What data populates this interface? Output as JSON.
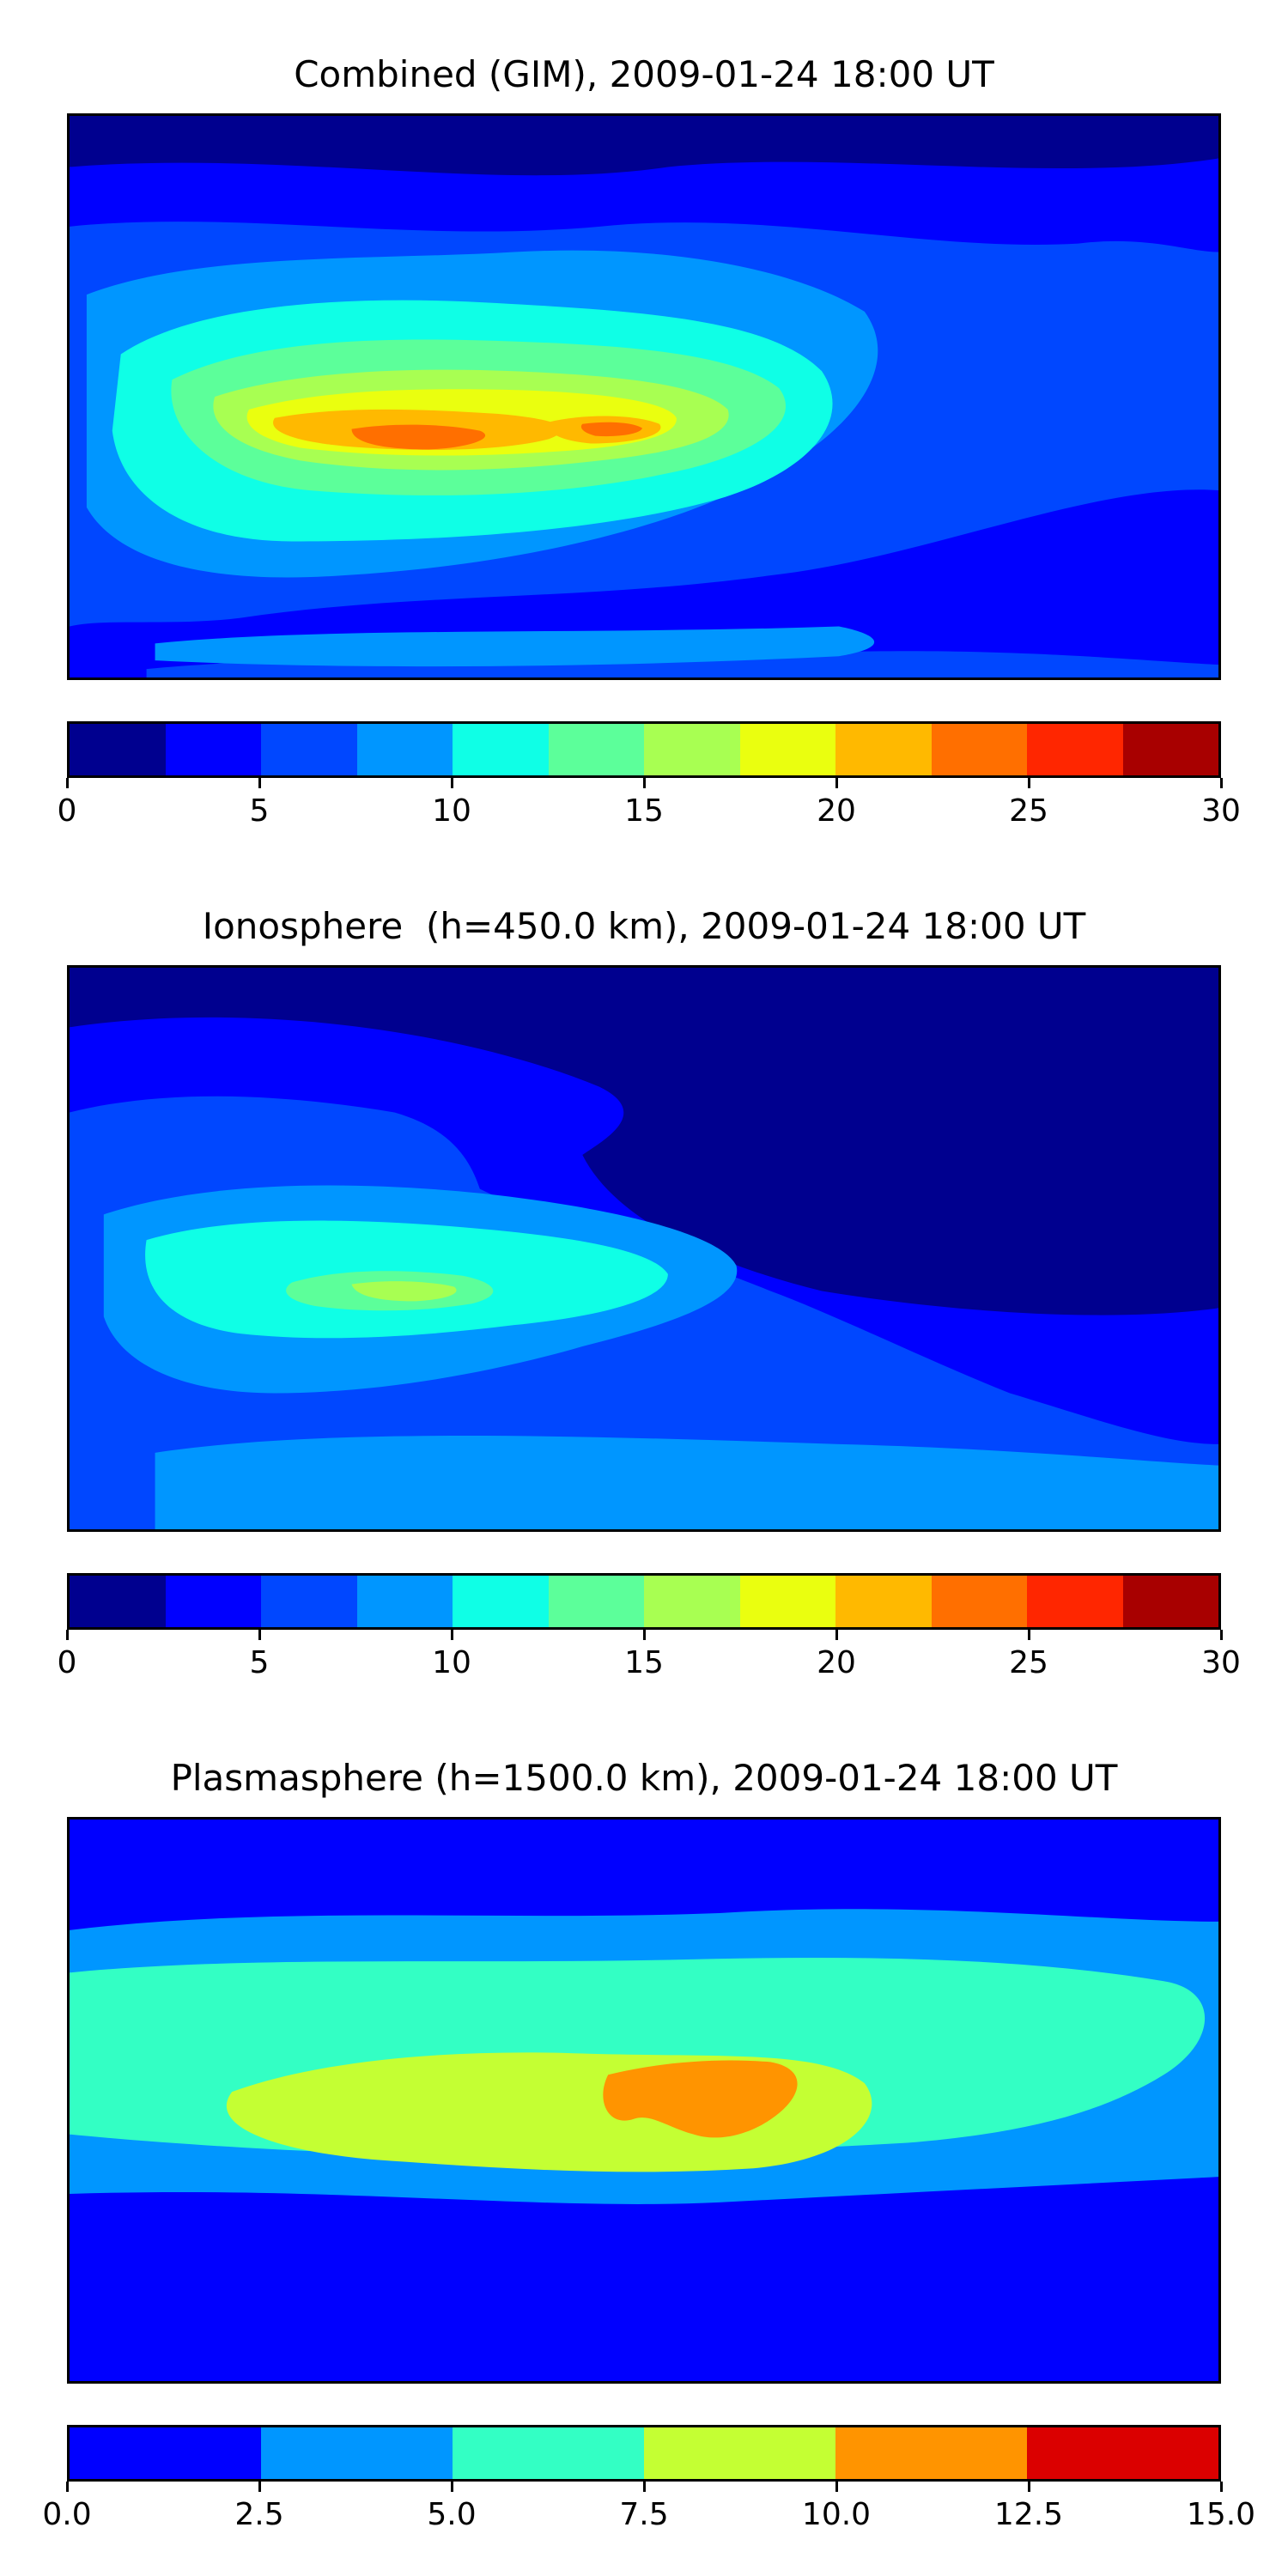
{
  "panels": [
    {
      "title": "Combined (GIM), 2009-01-24 18:00 UT",
      "colorbar": {
        "min": 0,
        "max": 30,
        "colors": [
          "#00008f",
          "#0000ff",
          "#0047ff",
          "#0096ff",
          "#0fffe6",
          "#5cff9a",
          "#a8ff52",
          "#eaff0f",
          "#ffb900",
          "#ff6f00",
          "#ff2600",
          "#a80000"
        ],
        "ticks": [
          "0",
          "5",
          "10",
          "15",
          "20",
          "25",
          "30"
        ]
      },
      "bands": [
        {
          "level": "0-2.5",
          "color": "#00008f"
        },
        {
          "level": "2.5-5",
          "color": "#0000ff"
        },
        {
          "level": "5-7.5",
          "color": "#0047ff"
        },
        {
          "level": "7.5-10",
          "color": "#0096ff"
        },
        {
          "level": "10-12.5",
          "color": "#0fffe6"
        },
        {
          "level": "12.5-15",
          "color": "#5cff9a"
        },
        {
          "level": "15-17.5",
          "color": "#a8ff52"
        },
        {
          "level": "17.5-20",
          "color": "#eaff0f"
        },
        {
          "level": "20-22.5",
          "color": "#ffb900"
        },
        {
          "level": "22.5-25",
          "color": "#ff6f00"
        }
      ]
    },
    {
      "title": "Ionosphere  (h=450.0 km), 2009-01-24 18:00 UT",
      "colorbar": {
        "min": 0,
        "max": 30,
        "colors": [
          "#00008f",
          "#0000ff",
          "#0047ff",
          "#0096ff",
          "#0fffe6",
          "#5cff9a",
          "#a8ff52",
          "#eaff0f",
          "#ffb900",
          "#ff6f00",
          "#ff2600",
          "#a80000"
        ],
        "ticks": [
          "0",
          "5",
          "10",
          "15",
          "20",
          "25",
          "30"
        ]
      },
      "bands": [
        {
          "level": "0-2.5",
          "color": "#00008f"
        },
        {
          "level": "2.5-5",
          "color": "#0000ff"
        },
        {
          "level": "5-7.5",
          "color": "#0047ff"
        },
        {
          "level": "7.5-10",
          "color": "#0096ff"
        },
        {
          "level": "10-12.5",
          "color": "#0fffe6"
        },
        {
          "level": "12.5-15",
          "color": "#5cff9a"
        },
        {
          "level": "15-17.5",
          "color": "#a8ff52"
        }
      ]
    },
    {
      "title": "Plasmasphere (h=1500.0 km), 2009-01-24 18:00 UT",
      "colorbar": {
        "min": 0,
        "max": 15,
        "colors": [
          "#0000ff",
          "#0096ff",
          "#33ffc4",
          "#c4ff33",
          "#ff9400",
          "#db0000"
        ],
        "ticks": [
          "0.0",
          "2.5",
          "5.0",
          "7.5",
          "10.0",
          "12.5",
          "15.0"
        ]
      },
      "bands": [
        {
          "level": "0-2.5",
          "color": "#0000ff"
        },
        {
          "level": "2.5-5",
          "color": "#0096ff"
        },
        {
          "level": "5-7.5",
          "color": "#33ffc4"
        },
        {
          "level": "7.5-10",
          "color": "#c4ff33"
        },
        {
          "level": "10-12.5",
          "color": "#ff9400"
        }
      ]
    }
  ]
}
